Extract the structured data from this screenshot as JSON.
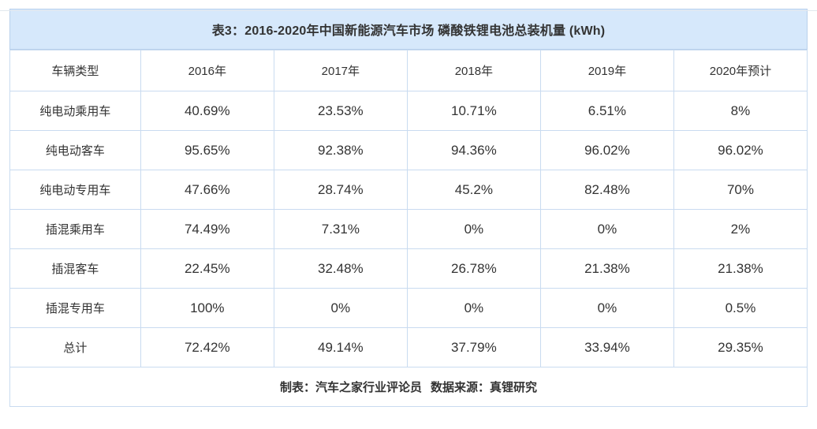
{
  "chart_data": {
    "type": "table",
    "title": "表3：2016-2020年中国新能源汽车市场 磷酸铁锂电池总装机量 (kWh)",
    "columns": [
      "车辆类型",
      "2016年",
      "2017年",
      "2018年",
      "2019年",
      "2020年预计"
    ],
    "rows": [
      {
        "label": "纯电动乘用车",
        "values": [
          "40.69%",
          "23.53%",
          "10.71%",
          "6.51%",
          "8%"
        ]
      },
      {
        "label": "纯电动客车",
        "values": [
          "95.65%",
          "92.38%",
          "94.36%",
          "96.02%",
          "96.02%"
        ]
      },
      {
        "label": "纯电动专用车",
        "values": [
          "47.66%",
          "28.74%",
          "45.2%",
          "82.48%",
          "70%"
        ]
      },
      {
        "label": "插混乘用车",
        "values": [
          "74.49%",
          "7.31%",
          "0%",
          "0%",
          "2%"
        ]
      },
      {
        "label": "插混客车",
        "values": [
          "22.45%",
          "32.48%",
          "26.78%",
          "21.38%",
          "21.38%"
        ]
      },
      {
        "label": "插混专用车",
        "values": [
          "100%",
          "0%",
          "0%",
          "0%",
          "0.5%"
        ]
      },
      {
        "label": "总计",
        "values": [
          "72.42%",
          "49.14%",
          "37.79%",
          "33.94%",
          "29.35%"
        ]
      }
    ],
    "footer_maker": "制表：汽车之家行业评论员",
    "footer_source": "数据来源：真锂研究",
    "layout": {
      "first_col_width_pct": 16.4,
      "year_col_width_pct": 16.72,
      "grid": true,
      "legend_position": "none"
    }
  },
  "colors": {
    "title_bg": "#d6e8fb",
    "title_border": "#b9d0ec",
    "cell_border": "#c9dbf0",
    "text": "#333333",
    "page_rule": "#e2e8ee"
  }
}
